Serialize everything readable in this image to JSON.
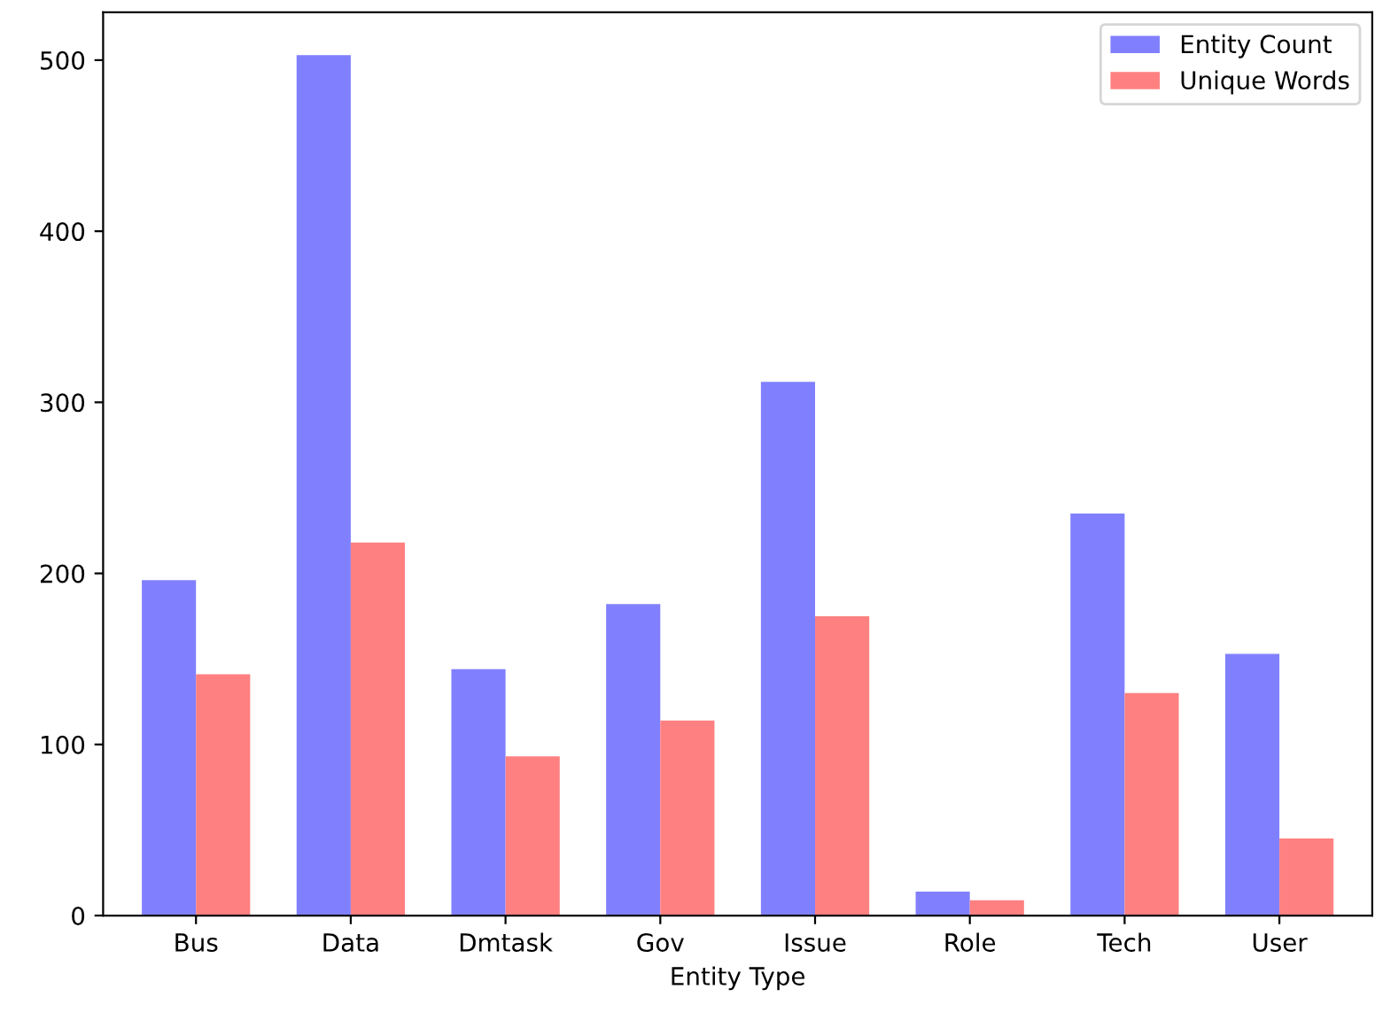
{
  "chart_data": {
    "type": "bar",
    "xlabel": "Entity Type",
    "categories": [
      "Bus",
      "Data",
      "Dmtask",
      "Gov",
      "Issue",
      "Role",
      "Tech",
      "User"
    ],
    "series": [
      {
        "name": "Entity Count",
        "color": "#8080ff",
        "values": [
          196,
          503,
          144,
          182,
          312,
          14,
          235,
          153
        ]
      },
      {
        "name": "Unique Words",
        "color": "#ff8080",
        "values": [
          141,
          218,
          93,
          114,
          175,
          9,
          130,
          45
        ]
      }
    ],
    "ylim": [
      0,
      528
    ],
    "yticks": [
      0,
      100,
      200,
      300,
      400,
      500
    ],
    "legend": "top right",
    "grid": false
  }
}
